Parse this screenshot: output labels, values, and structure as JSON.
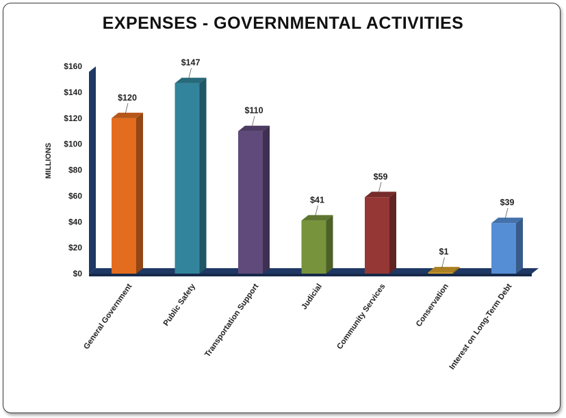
{
  "chart_data": {
    "type": "bar",
    "title": "EXPENSES - GOVERNMENTAL ACTIVITIES",
    "ylabel": "MILLIONS",
    "xlabel": "",
    "ylim": [
      0,
      160
    ],
    "yticks": [
      0,
      20,
      40,
      60,
      80,
      100,
      120,
      140,
      160
    ],
    "ytick_labels": [
      "$0",
      "$20",
      "$40",
      "$60",
      "$80",
      "$100",
      "$120",
      "$140",
      "$160"
    ],
    "categories": [
      "General Government",
      "Public Safety",
      "Transportation Support",
      "Judicial",
      "Community Services",
      "Conservation",
      "Interest on Long-Term Debt"
    ],
    "values": [
      120,
      147,
      110,
      41,
      59,
      1,
      39
    ],
    "data_labels": [
      "$120",
      "$147",
      "$110",
      "$41",
      "$59",
      "$1",
      "$39"
    ],
    "colors": [
      "#E36C1E",
      "#31849B",
      "#604A7B",
      "#77933C",
      "#953735",
      "#D6A02A",
      "#558ED5"
    ],
    "grid": false,
    "legend": "none"
  }
}
